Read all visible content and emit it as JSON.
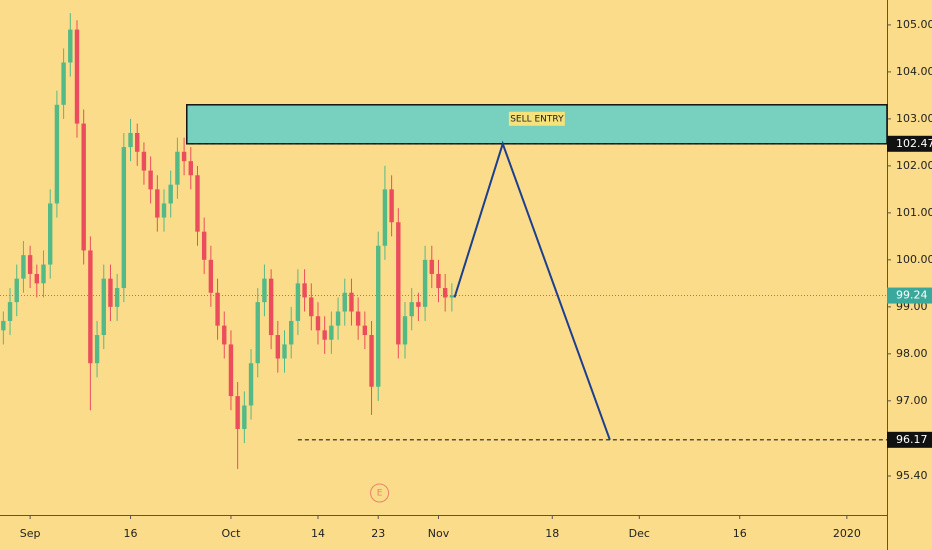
{
  "chart_data": {
    "type": "candlestick",
    "xlim": [
      -4.5,
      128
    ],
    "ylim": [
      94.57,
      105.53
    ],
    "xticks": [
      {
        "value": 0,
        "label": "Sep"
      },
      {
        "value": 15,
        "label": "16"
      },
      {
        "value": 30,
        "label": "Oct"
      },
      {
        "value": 43,
        "label": "14"
      },
      {
        "value": 52,
        "label": "23"
      },
      {
        "value": 61,
        "label": "Nov"
      },
      {
        "value": 78,
        "label": "18"
      },
      {
        "value": 91,
        "label": "Dec"
      },
      {
        "value": 106,
        "label": "16"
      },
      {
        "value": 122,
        "label": "2020"
      }
    ],
    "yticks": [
      {
        "value": 105,
        "label": "105.00"
      },
      {
        "value": 104,
        "label": "104.00"
      },
      {
        "value": 103,
        "label": "103.00"
      },
      {
        "value": 102,
        "label": "102.00"
      },
      {
        "value": 101,
        "label": "101.00"
      },
      {
        "value": 100,
        "label": "100.00"
      },
      {
        "value": 99,
        "label": "99.00"
      },
      {
        "value": 98,
        "label": "98.00"
      },
      {
        "value": 97,
        "label": "97.00"
      },
      {
        "value": 95.4,
        "label": "95.40"
      }
    ],
    "up_color": "#53b987",
    "down_color": "#eb4d5c",
    "x": [
      -4,
      -3,
      -2,
      -1,
      0,
      1,
      2,
      3,
      4,
      5,
      6,
      7,
      8,
      9,
      10,
      11,
      12,
      13,
      14,
      15,
      16,
      17,
      18,
      19,
      20,
      21,
      22,
      23,
      24,
      25,
      26,
      27,
      28,
      29,
      30,
      31,
      32,
      33,
      34,
      35,
      36,
      37,
      38,
      39,
      40,
      41,
      42,
      43,
      44,
      45,
      46,
      47,
      48,
      49,
      50,
      51,
      52,
      53,
      54,
      55,
      56,
      57,
      58,
      59,
      60,
      61,
      62,
      63
    ],
    "open": [
      98.5,
      98.7,
      99.1,
      99.6,
      100.1,
      99.7,
      99.5,
      99.9,
      101.2,
      103.3,
      104.2,
      104.9,
      102.9,
      100.2,
      97.8,
      98.4,
      99.6,
      99.0,
      99.4,
      102.4,
      102.7,
      102.3,
      101.9,
      101.5,
      100.9,
      101.2,
      101.6,
      102.3,
      102.1,
      101.8,
      100.6,
      100.0,
      99.3,
      98.6,
      98.2,
      97.1,
      96.4,
      96.9,
      97.8,
      99.1,
      99.6,
      98.4,
      97.9,
      98.2,
      98.7,
      99.5,
      99.2,
      98.8,
      98.5,
      98.3,
      98.6,
      98.9,
      99.3,
      98.9,
      98.6,
      98.4,
      97.3,
      100.3,
      101.5,
      100.8,
      98.2,
      98.8,
      99.1,
      99.0,
      100.0,
      99.7,
      99.4,
      99.2
    ],
    "high": [
      98.9,
      99.4,
      99.9,
      100.4,
      100.3,
      99.9,
      100.2,
      101.5,
      103.6,
      104.5,
      105.25,
      105.1,
      103.2,
      100.5,
      98.7,
      99.9,
      99.9,
      99.7,
      102.7,
      103.0,
      102.9,
      102.5,
      102.2,
      101.8,
      101.5,
      101.9,
      102.6,
      102.6,
      102.4,
      102.0,
      100.9,
      100.3,
      99.6,
      98.9,
      98.5,
      97.4,
      97.2,
      98.1,
      99.4,
      99.9,
      99.8,
      98.7,
      98.5,
      99.0,
      99.8,
      99.8,
      99.5,
      99.1,
      98.8,
      98.9,
      99.2,
      99.6,
      99.6,
      99.2,
      98.9,
      98.7,
      100.6,
      102.0,
      101.8,
      101.1,
      99.1,
      99.4,
      99.3,
      100.3,
      100.3,
      100.0,
      99.7,
      99.5
    ],
    "low": [
      98.2,
      98.4,
      98.8,
      99.3,
      99.4,
      99.2,
      99.2,
      99.6,
      100.9,
      103.0,
      103.9,
      102.6,
      99.9,
      96.8,
      97.5,
      98.1,
      98.7,
      98.7,
      99.1,
      102.1,
      102.0,
      101.6,
      101.2,
      100.6,
      100.6,
      100.9,
      101.3,
      101.8,
      101.5,
      100.3,
      99.7,
      99.0,
      98.3,
      97.9,
      96.8,
      95.55,
      96.1,
      96.6,
      97.5,
      98.8,
      98.1,
      97.6,
      97.6,
      97.9,
      98.4,
      98.9,
      98.5,
      98.2,
      98.0,
      98.0,
      98.3,
      98.6,
      98.6,
      98.3,
      98.1,
      96.7,
      97.0,
      100.0,
      100.5,
      97.9,
      97.9,
      98.5,
      98.7,
      98.7,
      99.4,
      99.1,
      98.9,
      98.9
    ],
    "close": [
      98.7,
      99.1,
      99.6,
      100.1,
      99.7,
      99.5,
      99.9,
      101.2,
      103.3,
      104.2,
      104.9,
      102.9,
      100.2,
      97.8,
      98.4,
      99.6,
      99.0,
      99.4,
      102.4,
      102.7,
      102.3,
      101.9,
      101.5,
      100.9,
      101.2,
      101.6,
      102.3,
      102.1,
      101.8,
      100.6,
      100.0,
      99.3,
      98.6,
      98.2,
      97.1,
      96.4,
      96.9,
      97.8,
      99.1,
      99.6,
      98.4,
      97.9,
      98.2,
      98.7,
      99.5,
      99.2,
      98.8,
      98.5,
      98.3,
      98.6,
      98.9,
      99.3,
      98.9,
      98.6,
      98.4,
      97.3,
      100.3,
      101.5,
      100.8,
      98.2,
      98.8,
      99.1,
      99.0,
      100.0,
      99.7,
      99.4,
      99.2,
      99.24
    ],
    "zone": {
      "label": "SELL ENTRY",
      "x_start": 23.4,
      "y_low": 102.47,
      "y_high": 103.3,
      "color": "#77d1be"
    },
    "levels": [
      {
        "value": 102.47,
        "x_start": 23.4
      },
      {
        "value": 96.17,
        "x_start": 40
      }
    ],
    "last_price": {
      "value": 99.24,
      "color": "#3aa89a"
    },
    "projection": {
      "x": [
        63.4,
        70.6,
        86.6
      ],
      "y": [
        99.2,
        102.47,
        96.17
      ],
      "color": "#1d3f8f"
    },
    "earnings_marker": {
      "label": "E",
      "x": 52.2
    }
  }
}
